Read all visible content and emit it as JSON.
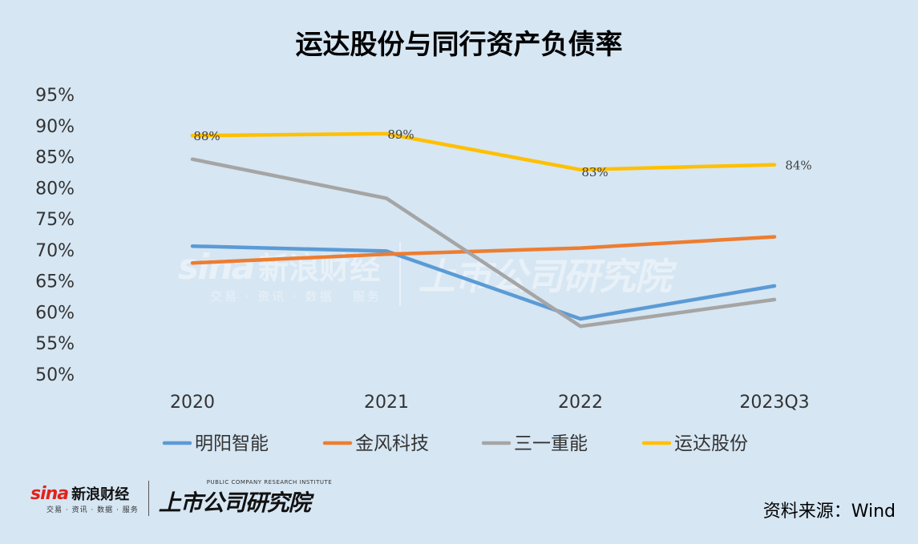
{
  "title": "运达股份与同行资产负债率",
  "source": "资料来源：Wind",
  "logos": {
    "sina_word": "sina",
    "sina_cn": "新浪财经",
    "sina_sub": "交易 · 资讯 · 数据 · 服务",
    "institute_en": "PUBLIC COMPANY RESEARCH INSTITUTE",
    "institute_cn": "上市公司研究院"
  },
  "chart_data": {
    "type": "line",
    "categories": [
      "2020",
      "2021",
      "2022",
      "2023Q3"
    ],
    "y_ticks": [
      "95%",
      "90%",
      "85%",
      "80%",
      "75%",
      "70%",
      "65%",
      "60%",
      "55%",
      "50%"
    ],
    "ylim": [
      50,
      95
    ],
    "grid": false,
    "legend_position": "bottom",
    "series": [
      {
        "name": "明阳智能",
        "color": "#5b9bd5",
        "values": [
          70.6,
          69.8,
          58.9,
          64.2
        ],
        "labels": []
      },
      {
        "name": "金风科技",
        "color": "#ed7d31",
        "values": [
          67.9,
          69.3,
          70.3,
          72.1
        ],
        "labels": []
      },
      {
        "name": "三一重能",
        "color": "#a5a5a5",
        "values": [
          84.6,
          78.3,
          57.7,
          62.0
        ],
        "labels": []
      },
      {
        "name": "运达股份",
        "color": "#ffc000",
        "values": [
          88.4,
          88.7,
          82.9,
          83.7
        ],
        "labels": [
          "88%",
          "89%",
          "83%",
          "84%"
        ]
      }
    ]
  }
}
